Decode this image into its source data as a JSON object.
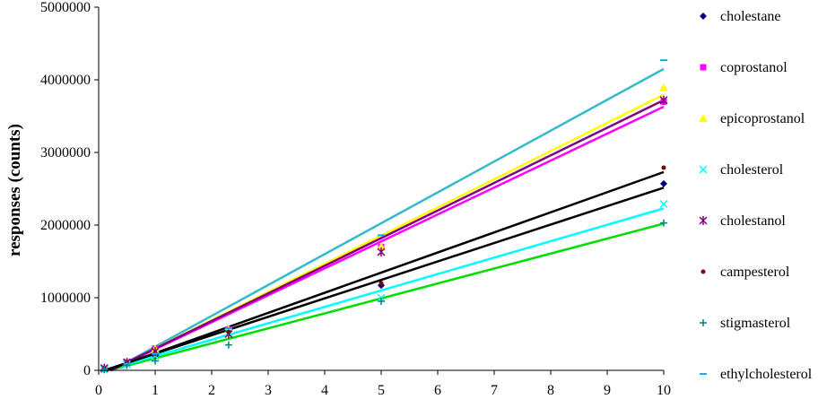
{
  "chart_data": {
    "type": "scatter",
    "ylabel": "responses (counts)",
    "xlabel": "",
    "xlim": [
      0,
      10
    ],
    "ylim": [
      0,
      5000000
    ],
    "x_ticks": [
      0,
      1,
      2,
      3,
      4,
      5,
      6,
      7,
      8,
      9,
      10
    ],
    "y_ticks": [
      0,
      1000000,
      2000000,
      3000000,
      4000000,
      5000000
    ],
    "x": [
      0.1,
      0.5,
      1,
      2.3,
      5,
      10
    ],
    "legend_position": "right",
    "series": [
      {
        "name": "cholestane",
        "color": "#000080",
        "marker": "diamond",
        "trend_color": "#000000",
        "values": [
          20000,
          90000,
          200000,
          560000,
          1170000,
          2570000
        ],
        "trend": [
          254000,
          -25000
        ]
      },
      {
        "name": "coprostanol",
        "color": "#FF00FF",
        "marker": "square",
        "trend_color": "#FF00FF",
        "values": [
          20000,
          110000,
          300000,
          560000,
          1700000,
          3700000
        ],
        "trend": [
          371000,
          -80000
        ]
      },
      {
        "name": "epicoprostanol",
        "color": "#FFFF00",
        "marker": "triangle",
        "trend_color": "#FFFF00",
        "values": [
          20000,
          110000,
          290000,
          560000,
          1700000,
          3890000
        ],
        "trend": [
          388000,
          -85000
        ]
      },
      {
        "name": "cholesterol",
        "color": "#00FFFF",
        "marker": "x",
        "trend_color": "#00FFFF",
        "values": [
          10000,
          80000,
          200000,
          520000,
          1000000,
          2290000
        ],
        "trend": [
          226000,
          -30000
        ]
      },
      {
        "name": "cholestanol",
        "color": "#800080",
        "marker": "asterisk",
        "trend_color": "#800080",
        "values": [
          30000,
          110000,
          260000,
          500000,
          1630000,
          3720000
        ],
        "trend": [
          380000,
          -80000
        ]
      },
      {
        "name": "campesterol",
        "color": "#800000",
        "marker": "circle",
        "trend_color": "#000000",
        "values": [
          20000,
          100000,
          240000,
          530000,
          1200000,
          2790000
        ],
        "trend": [
          277000,
          -40000
        ]
      },
      {
        "name": "stigmasterol",
        "color": "#008080",
        "marker": "plus",
        "trend_color": "#00DD00",
        "values": [
          10000,
          70000,
          130000,
          350000,
          950000,
          2030000
        ],
        "trend": [
          206000,
          -40000
        ]
      },
      {
        "name": "ethylcholesterol",
        "color": "#00B0F0",
        "marker": "dash",
        "trend_color": "#33BBCC",
        "values": [
          10000,
          90000,
          230000,
          580000,
          1860000,
          4270000
        ],
        "trend": [
          425000,
          -100000
        ]
      }
    ]
  }
}
